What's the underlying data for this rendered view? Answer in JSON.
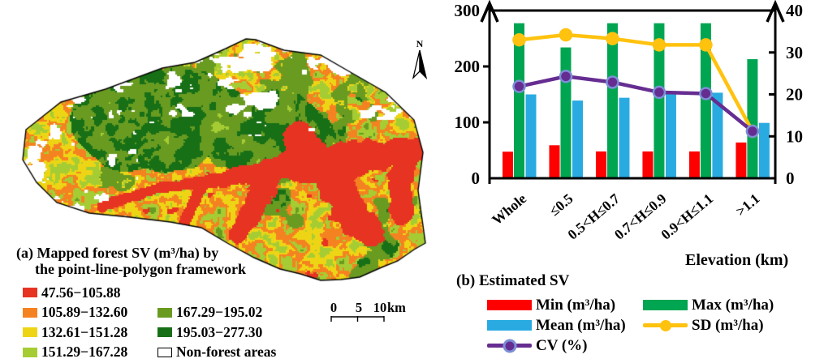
{
  "panel_a": {
    "caption_line1": "(a) Mapped forest SV (m³/ha) by",
    "caption_line2": "the point-line-polygon framework",
    "legend": [
      {
        "label": "47.56−105.88",
        "color": "#E73322"
      },
      {
        "label": "105.89−132.60",
        "color": "#F58220"
      },
      {
        "label": "132.61−151.28",
        "color": "#EDD515"
      },
      {
        "label": "151.29−167.28",
        "color": "#A5CD33"
      },
      {
        "label": "167.29−195.02",
        "color": "#699B21"
      },
      {
        "label": "195.03−277.30",
        "color": "#176F16"
      },
      {
        "label": "Non-forest areas",
        "color": "#FFFFFF"
      }
    ],
    "north_label": "N",
    "scale_bar": {
      "tick_labels": [
        "0",
        "5",
        "10"
      ],
      "unit": "km"
    }
  },
  "panel_b": {
    "caption": "(b) Estimated SV"
  },
  "chart_data": {
    "type": "bar+line",
    "categories": [
      "Whole",
      "≤0.5",
      "0.5<H≤0.7",
      "0.7<H≤0.9",
      "0.9<H≤1.1",
      ">1.1"
    ],
    "bar_series": [
      {
        "name": "Min (m³/ha)",
        "axis": "left",
        "color": "#FF0000",
        "values": [
          47.56,
          59,
          48,
          48,
          48,
          64
        ]
      },
      {
        "name": "Max (m³/ha)",
        "axis": "left",
        "color": "#00A551",
        "values": [
          277.3,
          234,
          277.3,
          277.3,
          277.3,
          213
        ]
      },
      {
        "name": "Mean (m³/ha)",
        "axis": "left",
        "color": "#29ABE2",
        "values": [
          150,
          139,
          144,
          152,
          153,
          99
        ]
      }
    ],
    "line_series": [
      {
        "name": "SD (m³/ha)",
        "axis": "right",
        "color": "#FFC20E",
        "marker_ring": "#FFC20E",
        "values": [
          33,
          34.2,
          33.3,
          31.8,
          31.8,
          11.2
        ]
      },
      {
        "name": "CV (%)",
        "axis": "right",
        "color": "#662D91",
        "marker_ring": "#7B8FD6",
        "values": [
          21.9,
          24.3,
          22.9,
          20.5,
          20.2,
          11.2
        ]
      }
    ],
    "left_axis": {
      "max": 300,
      "ticks": [
        "0",
        "100",
        "200",
        "300"
      ]
    },
    "right_axis": {
      "max": 40,
      "ticks": [
        "0",
        "10",
        "20",
        "30",
        "40"
      ]
    },
    "xlabel": "Elevation (km)",
    "grid": false,
    "legend_position": "bottom"
  }
}
